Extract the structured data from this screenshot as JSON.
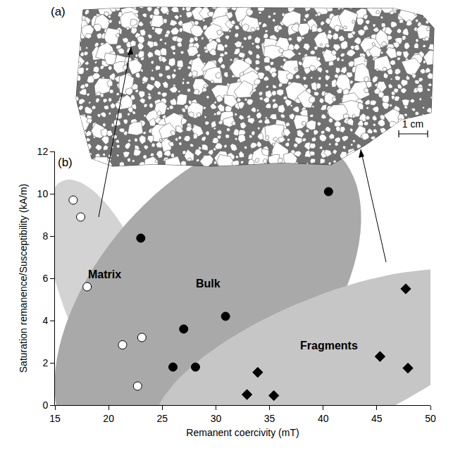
{
  "chart_data": {
    "type": "scatter",
    "panel_labels": [
      "(a)",
      "(b)"
    ],
    "scale_bar": "1 cm",
    "x_label": "Remanent coercivity (mT)",
    "y_label": "Saturation remanence/Susceptibility (kA/m)",
    "xlim": [
      15,
      50
    ],
    "xticks": [
      15,
      20,
      25,
      30,
      35,
      40,
      45,
      50
    ],
    "ylim": [
      0,
      12
    ],
    "yticks": [
      0,
      2,
      4,
      6,
      8,
      10,
      12
    ],
    "grid": false,
    "series": [
      {
        "name": "Matrix",
        "color": "#000000",
        "marker": "circle-open",
        "x": [
          16.7,
          17.4,
          18.0,
          21.3,
          23.1,
          22.7
        ],
        "values": [
          9.7,
          8.9,
          5.6,
          2.85,
          3.2,
          0.9
        ]
      },
      {
        "name": "Bulk",
        "color": "#000000",
        "marker": "circle",
        "x": [
          23.0,
          40.5,
          27.0,
          30.9,
          26.0,
          28.1
        ],
        "values": [
          7.9,
          10.1,
          3.6,
          4.2,
          1.8,
          1.8
        ]
      },
      {
        "name": "Fragments",
        "color": "#000000",
        "marker": "diamond",
        "x": [
          47.7,
          45.3,
          47.9,
          33.9,
          32.9,
          35.4
        ],
        "values": [
          5.5,
          2.3,
          1.75,
          1.55,
          0.5,
          0.45
        ]
      }
    ]
  }
}
